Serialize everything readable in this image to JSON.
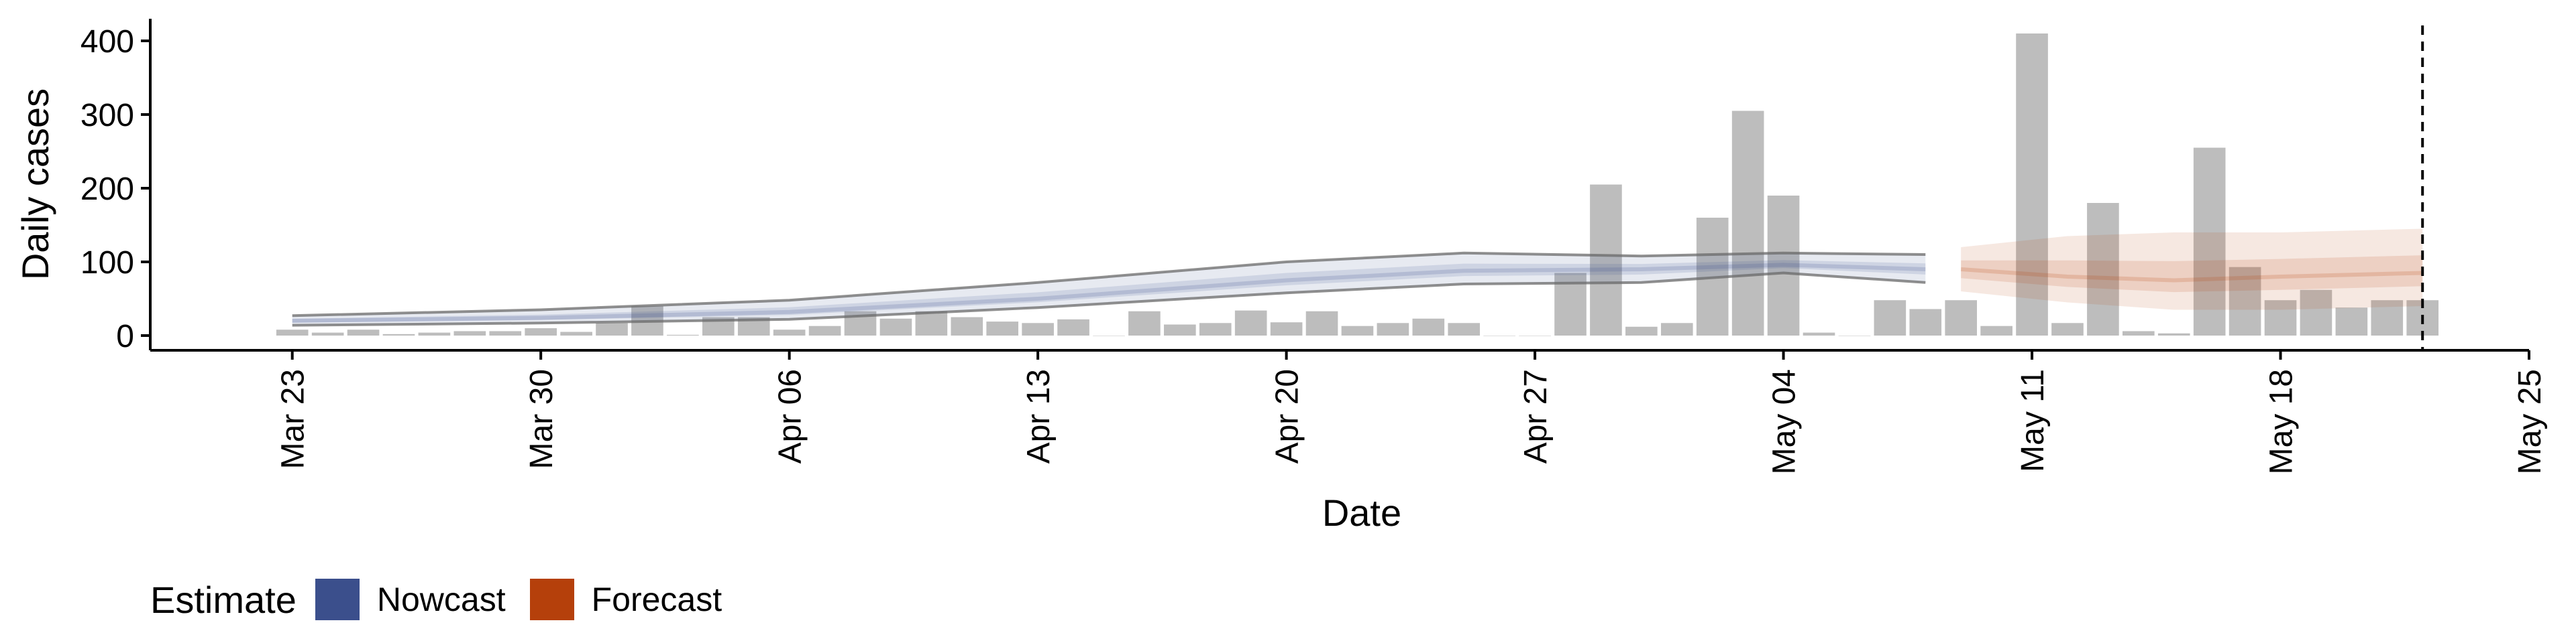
{
  "chart_data": {
    "type": "bar",
    "xlabel": "Date",
    "ylabel": "Daily cases",
    "ylim": [
      -20,
      430
    ],
    "yticks": [
      0,
      100,
      200,
      300,
      400
    ],
    "xlim": [
      "2020-03-19",
      "2020-05-25"
    ],
    "xticks": [
      {
        "date": "2020-03-23",
        "label": "Mar 23"
      },
      {
        "date": "2020-03-30",
        "label": "Mar 30"
      },
      {
        "date": "2020-04-06",
        "label": "Apr 06"
      },
      {
        "date": "2020-04-13",
        "label": "Apr 13"
      },
      {
        "date": "2020-04-20",
        "label": "Apr 20"
      },
      {
        "date": "2020-04-27",
        "label": "Apr 27"
      },
      {
        "date": "2020-05-04",
        "label": "May 04"
      },
      {
        "date": "2020-05-11",
        "label": "May 11"
      },
      {
        "date": "2020-05-18",
        "label": "May 18"
      },
      {
        "date": "2020-05-25",
        "label": "May 25"
      }
    ],
    "bars": {
      "color": "#bdbdbd",
      "dates": [
        "2020-03-23",
        "2020-03-24",
        "2020-03-25",
        "2020-03-26",
        "2020-03-27",
        "2020-03-28",
        "2020-03-29",
        "2020-03-30",
        "2020-03-31",
        "2020-04-01",
        "2020-04-02",
        "2020-04-03",
        "2020-04-04",
        "2020-04-05",
        "2020-04-06",
        "2020-04-07",
        "2020-04-08",
        "2020-04-09",
        "2020-04-10",
        "2020-04-11",
        "2020-04-12",
        "2020-04-13",
        "2020-04-14",
        "2020-04-15",
        "2020-04-16",
        "2020-04-17",
        "2020-04-18",
        "2020-04-19",
        "2020-04-20",
        "2020-04-21",
        "2020-04-22",
        "2020-04-23",
        "2020-04-24",
        "2020-04-25",
        "2020-04-26",
        "2020-04-27",
        "2020-04-28",
        "2020-04-29",
        "2020-04-30",
        "2020-05-01",
        "2020-05-02",
        "2020-05-03",
        "2020-05-04",
        "2020-05-05",
        "2020-05-06",
        "2020-05-07",
        "2020-05-08",
        "2020-05-09",
        "2020-05-10",
        "2020-05-11",
        "2020-05-12",
        "2020-05-13",
        "2020-05-14",
        "2020-05-15",
        "2020-05-16",
        "2020-05-17",
        "2020-05-18",
        "2020-05-19",
        "2020-05-20",
        "2020-05-21",
        "2020-05-22"
      ],
      "values": [
        8,
        4,
        8,
        2,
        4,
        6,
        6,
        10,
        5,
        17,
        40,
        1,
        25,
        25,
        8,
        13,
        33,
        23,
        33,
        25,
        19,
        17,
        22,
        0,
        33,
        15,
        17,
        34,
        18,
        33,
        13,
        17,
        23,
        17,
        0,
        0,
        85,
        205,
        12,
        17,
        160,
        305,
        190,
        4,
        0,
        48,
        36,
        48,
        13,
        410,
        17,
        180,
        6,
        3,
        255,
        93,
        48,
        62,
        38,
        48,
        48
      ]
    },
    "series": [
      {
        "name": "Nowcast",
        "color": "#3b4f8c",
        "dates": [
          "2020-03-23",
          "2020-03-30",
          "2020-04-06",
          "2020-04-13",
          "2020-04-20",
          "2020-04-25",
          "2020-04-30",
          "2020-05-04",
          "2020-05-08"
        ],
        "median": [
          20,
          24,
          32,
          50,
          75,
          88,
          90,
          96,
          90
        ],
        "upper": [
          27,
          35,
          48,
          72,
          100,
          112,
          108,
          112,
          110
        ],
        "lower": [
          14,
          17,
          22,
          38,
          58,
          70,
          72,
          85,
          72
        ]
      },
      {
        "name": "Forecast",
        "color": "#b5400b",
        "dates": [
          "2020-05-09",
          "2020-05-12",
          "2020-05-15",
          "2020-05-18",
          "2020-05-22"
        ],
        "median": [
          90,
          80,
          75,
          80,
          85
        ],
        "upper": [
          120,
          135,
          140,
          140,
          145
        ],
        "lower": [
          60,
          45,
          35,
          35,
          40
        ]
      }
    ],
    "vline_date": "2020-05-22",
    "legend": {
      "title": "Estimate",
      "position": "bottom-left",
      "items": [
        {
          "label": "Nowcast",
          "color": "#3b4f8c"
        },
        {
          "label": "Forecast",
          "color": "#b5400b"
        }
      ]
    },
    "grid": false
  }
}
